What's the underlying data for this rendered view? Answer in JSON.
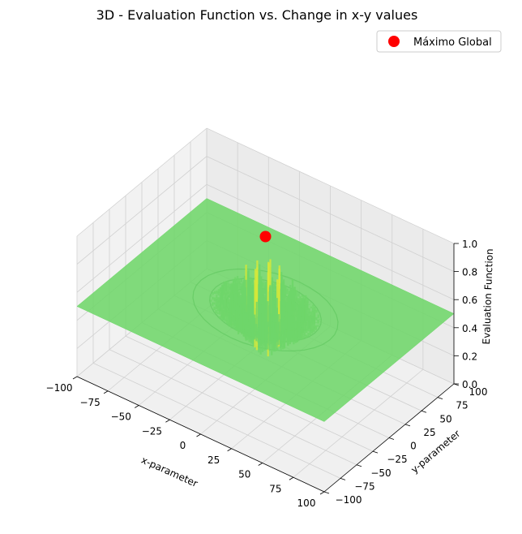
{
  "chart_data": {
    "type": "surface3d",
    "title": "3D - Evaluation Function vs. Change in x-y values",
    "xlabel": "x-parameter",
    "ylabel": "y-parameter",
    "zlabel": "Evaluation Function",
    "xlim": [
      -100,
      100
    ],
    "ylim": [
      -100,
      100
    ],
    "zlim": [
      0,
      1.0
    ],
    "x_ticks": [
      "−100",
      "−75",
      "−50",
      "−25",
      "0",
      "25",
      "50",
      "75",
      "100"
    ],
    "y_ticks": [
      "−100",
      "−75",
      "−50",
      "−25",
      "0",
      "25",
      "50",
      "75",
      "100"
    ],
    "z_ticks": [
      "0.0",
      "0.2",
      "0.4",
      "0.6",
      "0.8",
      "1.0"
    ],
    "x_tick_values": [
      -100,
      -75,
      -50,
      -25,
      0,
      25,
      50,
      75,
      100
    ],
    "y_tick_values": [
      -100,
      -75,
      -50,
      -25,
      0,
      25,
      50,
      75,
      100
    ],
    "z_tick_values": [
      0,
      0.2,
      0.4,
      0.6,
      0.8,
      1.0
    ],
    "surface_base_level": 0.5,
    "grid": true,
    "legend_placement": "top-right",
    "colors": {
      "surface": "#6fd66a",
      "surface_peak": "#d6e83a",
      "marker": "#ff0000",
      "pane": "#f2f2f2",
      "grid": "#d0d0d0"
    },
    "series": [
      {
        "name": "Máximo Global",
        "type": "scatter",
        "x": 0,
        "y": 0,
        "z": 1.0,
        "color": "#ff0000"
      }
    ]
  }
}
